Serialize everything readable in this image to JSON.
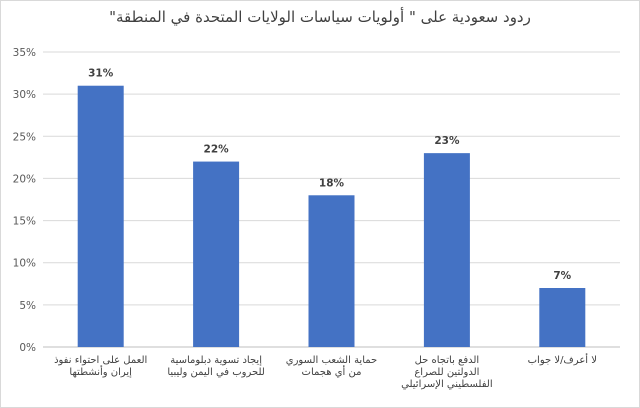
{
  "chart_data": {
    "type": "bar",
    "title": "ردود سعودية على \" أولويات سياسات الولايات المتحدة في المنطقة\"",
    "categories": [
      "العمل على احتواء نفوذ إيران وأنشطتها",
      "إيجاد تسوية دبلوماسية للحروب في اليمن وليبيا",
      "حماية الشعب السوري من أي هجمات",
      "الدفع باتجاه حل الدولتين للصراع الفلسطيني الإسرائيلي",
      "لا أعرف/لا جواب"
    ],
    "values": [
      31,
      22,
      18,
      23,
      7
    ],
    "data_labels": [
      "31%",
      "22%",
      "18%",
      "23%",
      "7%"
    ],
    "y_ticks": [
      "0%",
      "5%",
      "10%",
      "15%",
      "20%",
      "25%",
      "30%",
      "35%"
    ],
    "ylim": [
      0,
      35
    ],
    "grid": true,
    "legend": "none",
    "bar_color": "#4472c4"
  }
}
